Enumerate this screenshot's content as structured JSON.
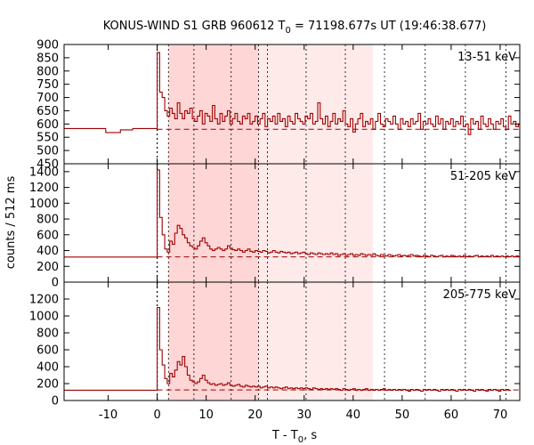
{
  "chart_data": {
    "type": "line",
    "title_prefix": "KONUS-WIND S1 GRB 960612 T",
    "title_sub": "0",
    "title_suffix": " = 71198.677s UT (19:46:38.677)",
    "xlabel_prefix": "T - T",
    "xlabel_sub": "0",
    "xlabel_suffix": ", s",
    "ylabel": "counts / 512 ms",
    "xlim": [
      -19,
      74
    ],
    "x_ticks": [
      -10,
      0,
      10,
      20,
      30,
      40,
      50,
      60,
      70
    ],
    "grid": false,
    "line_color": "#a00000",
    "background_color": "#ffffff",
    "shaded_regions": [
      {
        "x0": 2.3,
        "x1": 20.7,
        "color": "#ffd6d6"
      },
      {
        "x0": 20.7,
        "x1": 44.0,
        "color": "#ffeaea"
      }
    ],
    "dotted_markers": [
      0,
      2.3,
      7.5,
      15.1,
      20.7,
      22.5,
      30.4,
      38.4,
      46.4,
      54.7,
      62.9,
      71.2
    ],
    "panels": [
      {
        "band": "13-51 keV",
        "ylim": [
          450,
          900
        ],
        "y_ticks": [
          450,
          500,
          550,
          600,
          650,
          700,
          750,
          800,
          850,
          900
        ],
        "background_level": 580,
        "pre_trigger": [
          {
            "x0": -19,
            "x1": -10.5,
            "y": 583
          },
          {
            "x0": -10.5,
            "x1": -7.5,
            "y": 568
          },
          {
            "x0": -7.5,
            "x1": -5,
            "y": 578
          },
          {
            "x0": -5,
            "x1": 0,
            "y": 583
          }
        ],
        "post_trigger": [
          870,
          720,
          700,
          650,
          630,
          660,
          640,
          620,
          680,
          640,
          620,
          650,
          640,
          660,
          620,
          610,
          630,
          650,
          600,
          640,
          630,
          610,
          670,
          620,
          600,
          640,
          610,
          630,
          650,
          600,
          620,
          640,
          610,
          600,
          630,
          620,
          640,
          600,
          610,
          630,
          600,
          620,
          640,
          590,
          620,
          610,
          630,
          600,
          640,
          610,
          620,
          590,
          630,
          610,
          600,
          640,
          620,
          610,
          600,
          630,
          620,
          640,
          600,
          610,
          680,
          620,
          600,
          630,
          590,
          610,
          640,
          600,
          620,
          610,
          650,
          600,
          590,
          620,
          570,
          600,
          620,
          640,
          590,
          610,
          600,
          620,
          580,
          610,
          640,
          600,
          590,
          620,
          610,
          600,
          630,
          600,
          580,
          620,
          600,
          610,
          590,
          620,
          600,
          610,
          640,
          580,
          610,
          600,
          620,
          600,
          590,
          630,
          600,
          620,
          580,
          610,
          600,
          620,
          590,
          610,
          600,
          630,
          590,
          600,
          560,
          620,
          600,
          610,
          580,
          630,
          600,
          590,
          620,
          600,
          580,
          610,
          600,
          620,
          590,
          580,
          630,
          600,
          610,
          590,
          600
        ]
      },
      {
        "band": "51-205 keV",
        "ylim": [
          0,
          1500
        ],
        "y_ticks": [
          0,
          200,
          400,
          600,
          800,
          1000,
          1200,
          1400
        ],
        "background_level": 320,
        "pre_trigger": [
          {
            "x0": -19,
            "x1": 0,
            "y": 318
          }
        ],
        "post_trigger": [
          1420,
          820,
          600,
          420,
          380,
          520,
          480,
          620,
          720,
          680,
          600,
          560,
          500,
          460,
          440,
          420,
          460,
          520,
          560,
          500,
          460,
          420,
          400,
          420,
          440,
          420,
          400,
          420,
          460,
          430,
          410,
          400,
          420,
          400,
          380,
          400,
          420,
          390,
          380,
          400,
          390,
          380,
          400,
          390,
          370,
          380,
          400,
          380,
          370,
          390,
          380,
          370,
          380,
          360,
          370,
          380,
          360,
          370,
          380,
          360,
          350,
          370,
          360,
          350,
          370,
          360,
          350,
          360,
          350,
          370,
          350,
          360,
          340,
          350,
          360,
          340,
          350,
          360,
          340,
          350,
          340,
          360,
          350,
          340,
          350,
          340,
          360,
          340,
          330,
          350,
          340,
          330,
          350,
          340,
          330,
          340,
          350,
          330,
          340,
          330,
          340,
          350,
          330,
          340,
          330,
          320,
          340,
          330,
          320,
          340,
          330,
          320,
          330,
          340,
          320,
          330,
          320,
          340,
          330,
          320,
          330,
          320,
          340,
          320,
          330,
          320,
          330,
          340,
          320,
          330,
          320,
          330,
          320,
          340,
          320,
          330,
          320,
          330,
          320,
          330,
          320,
          330,
          320,
          330,
          320
        ]
      },
      {
        "band": "205-775 keV",
        "ylim": [
          0,
          1400
        ],
        "y_ticks": [
          0,
          200,
          400,
          600,
          800,
          1000,
          1200
        ],
        "background_level": 125,
        "pre_trigger": [
          {
            "x0": -19,
            "x1": 0,
            "y": 122
          }
        ],
        "post_trigger": [
          1100,
          600,
          420,
          260,
          200,
          320,
          280,
          360,
          460,
          420,
          520,
          400,
          300,
          240,
          220,
          200,
          220,
          260,
          300,
          240,
          210,
          190,
          200,
          180,
          190,
          200,
          180,
          190,
          210,
          180,
          170,
          180,
          190,
          170,
          160,
          180,
          170,
          160,
          170,
          160,
          170,
          150,
          160,
          170,
          150,
          160,
          150,
          160,
          150,
          140,
          150,
          160,
          140,
          150,
          140,
          150,
          140,
          150,
          140,
          150,
          140,
          130,
          150,
          140,
          130,
          140,
          130,
          140,
          130,
          140,
          130,
          140,
          130,
          120,
          140,
          130,
          120,
          130,
          140,
          120,
          130,
          120,
          130,
          140,
          120,
          130,
          120,
          130,
          120,
          130,
          140,
          120,
          130,
          120,
          130,
          120,
          130,
          120,
          130,
          120,
          110,
          130,
          120,
          130,
          120,
          110,
          130,
          120,
          130,
          120,
          130,
          120,
          110,
          130,
          120,
          130,
          120,
          130,
          120,
          110,
          130,
          120,
          130,
          120,
          130,
          120,
          110,
          130,
          120,
          130,
          120,
          110,
          130,
          120,
          130,
          120,
          110,
          130,
          120,
          130,
          120
        ]
      }
    ]
  }
}
